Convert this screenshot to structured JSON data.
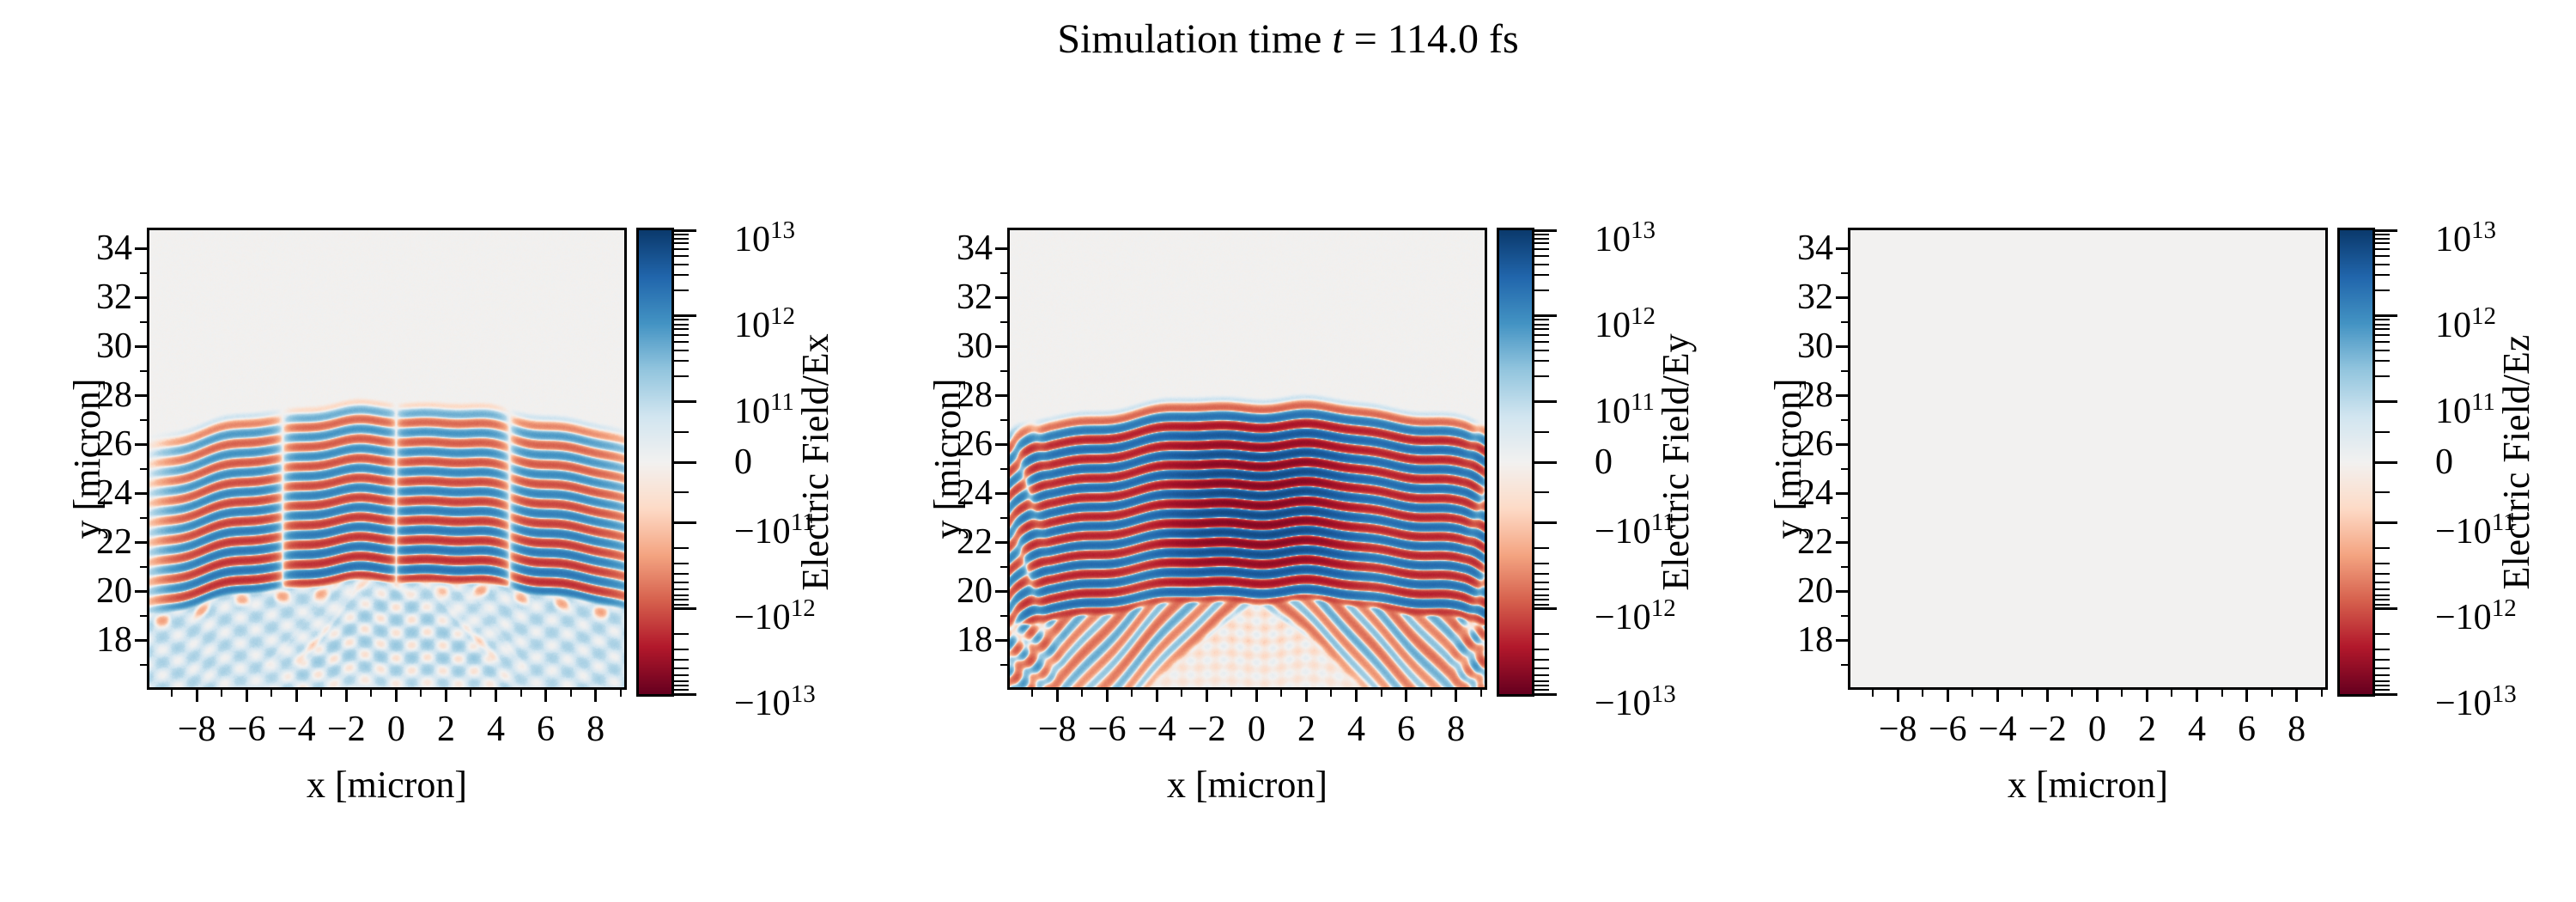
{
  "title": {
    "prefix": "Simulation time ",
    "math_var": "t",
    "suffix": " = 114.0 fs"
  },
  "figure": {
    "background": "#ffffff",
    "text_color": "#000000",
    "zero_field_color": "#f2f1f0"
  },
  "colormap": {
    "name": "RdBu_r",
    "stops": [
      "#67001f",
      "#b2182b",
      "#d6604d",
      "#f4a582",
      "#fddbc7",
      "#f2f1f0",
      "#d1e5f0",
      "#92c5de",
      "#4393c3",
      "#2166ac",
      "#0b3a6d"
    ]
  },
  "chart_data": [
    {
      "type": "heatmap",
      "field_component": "Ex",
      "xlabel": "x [micron]",
      "ylabel": "y [micron]",
      "xlim": [
        -9.9,
        9.15
      ],
      "ylim": [
        16.08,
        34.75
      ],
      "xticks": [
        -8,
        -6,
        -4,
        -2,
        0,
        2,
        4,
        6,
        8
      ],
      "xtick_labels": [
        "−8",
        "−6",
        "−4",
        "−2",
        "0",
        "2",
        "4",
        "6",
        "8"
      ],
      "yticks": [
        34,
        32,
        30,
        28,
        26,
        24,
        22,
        20,
        18
      ],
      "ytick_labels": [
        "34",
        "32",
        "30",
        "28",
        "26",
        "24",
        "22",
        "20",
        "18"
      ],
      "x_minor_ticks": [
        -9,
        -7,
        -5,
        -3,
        -1,
        1,
        3,
        5,
        7,
        9
      ],
      "y_minor_ticks": [
        33,
        31,
        29,
        27,
        25,
        23,
        21,
        19,
        17
      ],
      "colorbar": {
        "label": "Electric Field/Ex",
        "scale": "symlog",
        "vmin": -10000000000000.0,
        "vmax": 10000000000000.0,
        "linthresh": 100000000000.0,
        "major_tick_values": [
          10000000000000.0,
          1000000000000.0,
          100000000000.0,
          0,
          -100000000000.0,
          -1000000000000.0,
          -10000000000000.0
        ],
        "tick_labels": [
          {
            "mant": "10",
            "exp": "13"
          },
          {
            "mant": "10",
            "exp": "12"
          },
          {
            "mant": "10",
            "exp": "11"
          },
          {
            "plain": "0"
          },
          {
            "mant": "−10",
            "exp": "11"
          },
          {
            "mant": "−10",
            "exp": "12"
          },
          {
            "mant": "−10",
            "exp": "13"
          }
        ]
      },
      "pattern": {
        "kind": "ex",
        "wavelength_micron": 0.8,
        "band_top_y": 27.9,
        "band_bottom_y": 20.35,
        "node_x": 0,
        "phase_slip_x": 4.55,
        "wedge_apex_y": 20.55,
        "peak_amp_1e13": 0.2,
        "noise": 1
      }
    },
    {
      "type": "heatmap",
      "field_component": "Ey",
      "xlabel": "x [micron]",
      "ylabel": "y [micron]",
      "xlim": [
        -9.9,
        9.15
      ],
      "ylim": [
        16.08,
        34.75
      ],
      "xticks": [
        -8,
        -6,
        -4,
        -2,
        0,
        2,
        4,
        6,
        8
      ],
      "xtick_labels": [
        "−8",
        "−6",
        "−4",
        "−2",
        "0",
        "2",
        "4",
        "6",
        "8"
      ],
      "yticks": [
        34,
        32,
        30,
        28,
        26,
        24,
        22,
        20,
        18
      ],
      "ytick_labels": [
        "34",
        "32",
        "30",
        "28",
        "26",
        "24",
        "22",
        "20",
        "18"
      ],
      "x_minor_ticks": [
        -9,
        -7,
        -5,
        -3,
        -1,
        1,
        3,
        5,
        7,
        9
      ],
      "y_minor_ticks": [
        33,
        31,
        29,
        27,
        25,
        23,
        21,
        19,
        17
      ],
      "colorbar": {
        "label": "Electric Field/Ey",
        "scale": "symlog",
        "vmin": -10000000000000.0,
        "vmax": 10000000000000.0,
        "linthresh": 100000000000.0,
        "major_tick_values": [
          10000000000000.0,
          1000000000000.0,
          100000000000.0,
          0,
          -100000000000.0,
          -1000000000000.0,
          -10000000000000.0
        ],
        "tick_labels": [
          {
            "mant": "10",
            "exp": "13"
          },
          {
            "mant": "10",
            "exp": "12"
          },
          {
            "mant": "10",
            "exp": "11"
          },
          {
            "plain": "0"
          },
          {
            "mant": "−10",
            "exp": "11"
          },
          {
            "mant": "−10",
            "exp": "12"
          },
          {
            "mant": "−10",
            "exp": "13"
          }
        ]
      },
      "pattern": {
        "kind": "ey",
        "wavelength_micron": 0.79,
        "band_top_y": 28.1,
        "band_bottom_y": 19.55,
        "center_boost_x": 3.4,
        "center_boost_y": 23.6,
        "wedge_apex_y": 19.9,
        "peak_amp_1e13": 1.0,
        "noise": 1
      }
    },
    {
      "type": "heatmap",
      "field_component": "Ez",
      "xlabel": "x [micron]",
      "ylabel": "y [micron]",
      "xlim": [
        -9.9,
        9.15
      ],
      "ylim": [
        16.08,
        34.75
      ],
      "xticks": [
        -8,
        -6,
        -4,
        -2,
        0,
        2,
        4,
        6,
        8
      ],
      "xtick_labels": [
        "−8",
        "−6",
        "−4",
        "−2",
        "0",
        "2",
        "4",
        "6",
        "8"
      ],
      "yticks": [
        34,
        32,
        30,
        28,
        26,
        24,
        22,
        20,
        18
      ],
      "ytick_labels": [
        "34",
        "32",
        "30",
        "28",
        "26",
        "24",
        "22",
        "20",
        "18"
      ],
      "x_minor_ticks": [
        -9,
        -7,
        -5,
        -3,
        -1,
        1,
        3,
        5,
        7,
        9
      ],
      "y_minor_ticks": [
        33,
        31,
        29,
        27,
        25,
        23,
        21,
        19,
        17
      ],
      "colorbar": {
        "label": "Electric Field/Ez",
        "scale": "symlog",
        "vmin": -10000000000000.0,
        "vmax": 10000000000000.0,
        "linthresh": 100000000000.0,
        "major_tick_values": [
          10000000000000.0,
          1000000000000.0,
          100000000000.0,
          0,
          -100000000000.0,
          -1000000000000.0,
          -10000000000000.0
        ],
        "tick_labels": [
          {
            "mant": "10",
            "exp": "13"
          },
          {
            "mant": "10",
            "exp": "12"
          },
          {
            "mant": "10",
            "exp": "11"
          },
          {
            "plain": "0"
          },
          {
            "mant": "−10",
            "exp": "11"
          },
          {
            "mant": "−10",
            "exp": "12"
          },
          {
            "mant": "−10",
            "exp": "13"
          }
        ]
      },
      "pattern": {
        "kind": "zero",
        "peak_amp_1e13": 0,
        "noise": 0
      }
    }
  ]
}
